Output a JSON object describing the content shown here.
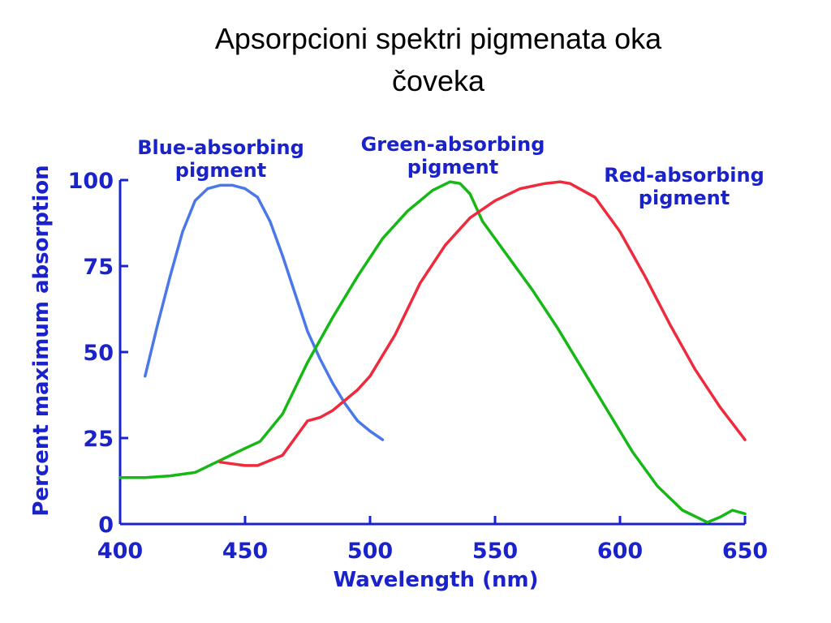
{
  "slide": {
    "title_line1": "Apsorpcioni spektri pigmenata oka",
    "title_line2": "čoveka"
  },
  "chart_data": {
    "type": "line",
    "xlabel": "Wavelength (nm)",
    "ylabel": "Percent maximum absorption",
    "xlim": [
      400,
      650
    ],
    "ylim": [
      0,
      100
    ],
    "x_ticks": [
      "400",
      "450",
      "500",
      "550",
      "600",
      "650"
    ],
    "y_ticks": [
      "0",
      "25",
      "50",
      "75",
      "100"
    ],
    "grid": false,
    "legend": "none",
    "series": [
      {
        "name": "Blue-absorbing pigment",
        "label_line1": "Blue-absorbing",
        "label_line2": "pigment",
        "color": "#4a78e8",
        "x": [
          410,
          415,
          420,
          425,
          430,
          435,
          440,
          445,
          450,
          455,
          460,
          465,
          470,
          475,
          480,
          485,
          490,
          495,
          500,
          505
        ],
        "y": [
          43,
          58,
          72,
          85,
          94,
          97.5,
          98.5,
          98.5,
          97.5,
          95,
          88,
          78,
          67,
          56,
          48,
          41,
          35,
          30,
          27,
          24.5
        ]
      },
      {
        "name": "Green-absorbing pigment",
        "label_line1": "Green-absorbing",
        "label_line2": "pigment",
        "color": "#16b816",
        "x": [
          400,
          410,
          420,
          430,
          440,
          450,
          456,
          465,
          475,
          485,
          495,
          505,
          515,
          525,
          532,
          536,
          540,
          545,
          555,
          565,
          575,
          585,
          595,
          605,
          615,
          625,
          635,
          640,
          645,
          650
        ],
        "y": [
          13.5,
          13.5,
          14,
          15,
          18.5,
          22,
          24,
          32,
          47,
          60,
          72,
          83,
          91,
          97,
          99.5,
          99,
          96,
          88,
          78,
          68,
          57,
          45,
          33,
          21,
          11,
          4,
          0.5,
          2,
          4,
          3
        ]
      },
      {
        "name": "Red-absorbing pigment",
        "label_line1": "Red-absorbing",
        "label_line2": "pigment",
        "color": "#ee2a3c",
        "x": [
          440,
          445,
          450,
          455,
          460,
          465,
          470,
          475,
          480,
          485,
          490,
          495,
          500,
          510,
          520,
          530,
          540,
          550,
          560,
          570,
          576,
          580,
          590,
          600,
          610,
          620,
          630,
          640,
          650
        ],
        "y": [
          18,
          17.5,
          17,
          17,
          18.5,
          20,
          25,
          30,
          31,
          33,
          36,
          39,
          43,
          55,
          70,
          81,
          89,
          94,
          97.5,
          99,
          99.5,
          99,
          95,
          85,
          72,
          58,
          45,
          34,
          24.5
        ]
      }
    ]
  }
}
